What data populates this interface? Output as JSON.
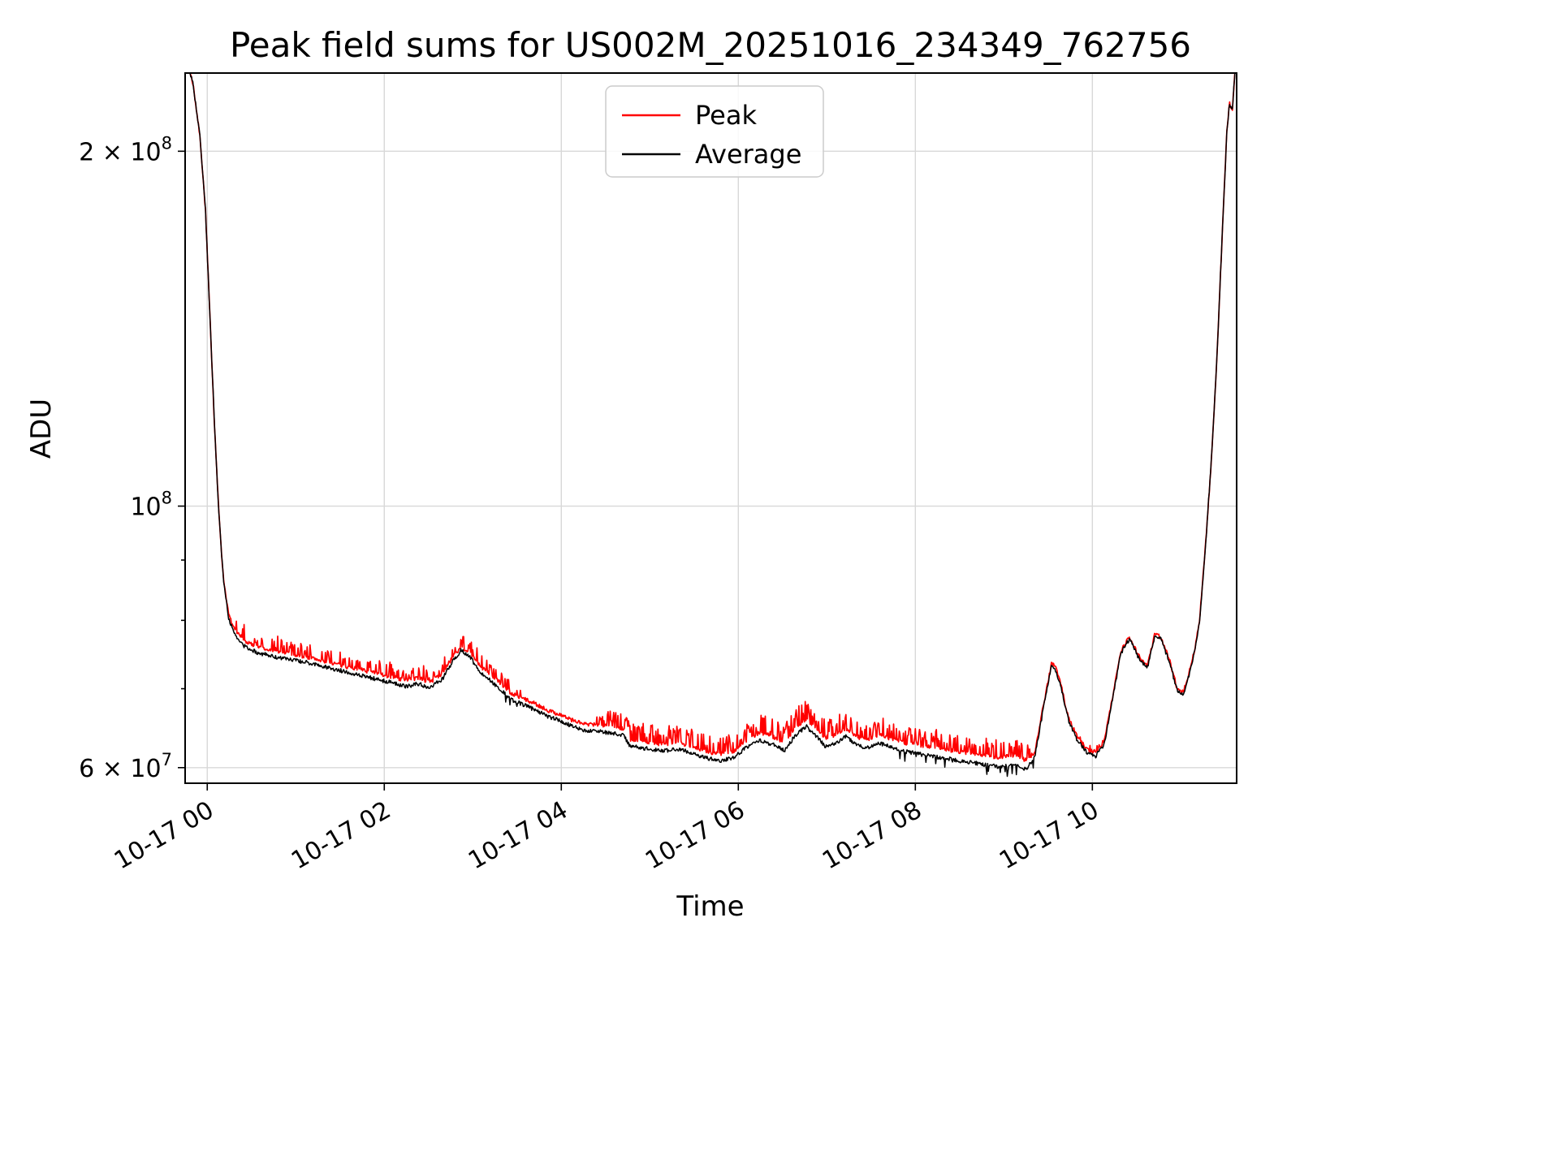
{
  "chart_data": {
    "type": "line",
    "title": "Peak field sums for US002M_20251016_234349_762756",
    "xlabel": "Time",
    "ylabel": "ADU",
    "yscale": "log",
    "grid": true,
    "legend_position": "upper center",
    "xlim_hours": [
      -0.25,
      11.63
    ],
    "ylim": [
      58200000.0,
      233000000.0
    ],
    "x_ticks": [
      {
        "hours": 0,
        "label": "10-17 00"
      },
      {
        "hours": 2,
        "label": "10-17 02"
      },
      {
        "hours": 4,
        "label": "10-17 04"
      },
      {
        "hours": 6,
        "label": "10-17 06"
      },
      {
        "hours": 8,
        "label": "10-17 08"
      },
      {
        "hours": 10,
        "label": "10-17 10"
      }
    ],
    "y_ticks": [
      {
        "value": 200000000.0,
        "label": "2 × 10^8"
      },
      {
        "value": 100000000.0,
        "label": "10^8"
      },
      {
        "value": 60000000.0,
        "label": "6 × 10^7"
      }
    ],
    "y_minor_ticks": [
      70000000.0,
      80000000.0,
      90000000.0
    ],
    "noise": {
      "seed": 7,
      "samples": 1500
    },
    "series": [
      {
        "name": "Peak",
        "color": "#ff0000",
        "width": 1.7,
        "noise": {
          "jitter": 0.004,
          "spikes": [
            {
              "from": 0.3,
              "to": 3.6,
              "amp": 0.028,
              "density": 0.3
            },
            {
              "from": 4.4,
              "to": 9.3,
              "amp": 0.035,
              "density": 0.35
            },
            {
              "from": 9.8,
              "to": 10.16,
              "amp": 0.012,
              "density": 0.2
            }
          ]
        },
        "control_points": [
          [
            -0.25,
            242000000.0
          ],
          [
            -0.16,
            228000000.0
          ],
          [
            -0.08,
            205000000.0
          ],
          [
            -0.02,
            178000000.0
          ],
          [
            0.03,
            145000000.0
          ],
          [
            0.08,
            118000000.0
          ],
          [
            0.13,
            99000000.0
          ],
          [
            0.18,
            87200000.0
          ],
          [
            0.24,
            81000000.0
          ],
          [
            0.3,
            78700000.0
          ],
          [
            0.4,
            77000000.0
          ],
          [
            0.55,
            76000000.0
          ],
          [
            0.75,
            75300000.0
          ],
          [
            0.95,
            74900000.0
          ],
          [
            1.15,
            74400000.0
          ],
          [
            1.35,
            73800000.0
          ],
          [
            1.55,
            73200000.0
          ],
          [
            1.75,
            72600000.0
          ],
          [
            1.95,
            72000000.0
          ],
          [
            2.1,
            71600000.0
          ],
          [
            2.25,
            71100000.0
          ],
          [
            2.38,
            71500000.0
          ],
          [
            2.52,
            70900000.0
          ],
          [
            2.66,
            72200000.0
          ],
          [
            2.78,
            74600000.0
          ],
          [
            2.87,
            76000000.0
          ],
          [
            2.97,
            75000000.0
          ],
          [
            3.08,
            73200000.0
          ],
          [
            3.2,
            71900000.0
          ],
          [
            3.31,
            70800000.0
          ],
          [
            3.42,
            69400000.0
          ],
          [
            3.56,
            68700000.0
          ],
          [
            3.7,
            68000000.0
          ],
          [
            3.85,
            67100000.0
          ],
          [
            4.0,
            66500000.0
          ],
          [
            4.13,
            65800000.0
          ],
          [
            4.27,
            65300000.0
          ],
          [
            4.42,
            65200000.0
          ],
          [
            4.57,
            65000000.0
          ],
          [
            4.71,
            64700000.0
          ],
          [
            4.77,
            63400000.0
          ],
          [
            4.95,
            63100000.0
          ],
          [
            5.15,
            62800000.0
          ],
          [
            5.35,
            63000000.0
          ],
          [
            5.5,
            62400000.0
          ],
          [
            5.65,
            61900000.0
          ],
          [
            5.8,
            61600000.0
          ],
          [
            5.95,
            62000000.0
          ],
          [
            6.1,
            63400000.0
          ],
          [
            6.25,
            64300000.0
          ],
          [
            6.4,
            63700000.0
          ],
          [
            6.52,
            63000000.0
          ],
          [
            6.65,
            65000000.0
          ],
          [
            6.77,
            66000000.0
          ],
          [
            6.88,
            64800000.0
          ],
          [
            6.98,
            63600000.0
          ],
          [
            7.1,
            63900000.0
          ],
          [
            7.21,
            64800000.0
          ],
          [
            7.33,
            63800000.0
          ],
          [
            7.45,
            63300000.0
          ],
          [
            7.58,
            64000000.0
          ],
          [
            7.72,
            63500000.0
          ],
          [
            7.86,
            63000000.0
          ],
          [
            8.0,
            62800000.0
          ],
          [
            8.22,
            62400000.0
          ],
          [
            8.45,
            62000000.0
          ],
          [
            8.7,
            61600000.0
          ],
          [
            8.95,
            61200000.0
          ],
          [
            9.1,
            61500000.0
          ],
          [
            9.25,
            60900000.0
          ],
          [
            9.35,
            61800000.0
          ],
          [
            9.44,
            67400000.0
          ],
          [
            9.54,
            73600000.0
          ],
          [
            9.58,
            73200000.0
          ],
          [
            9.64,
            70800000.0
          ],
          [
            9.73,
            66100000.0
          ],
          [
            9.83,
            63700000.0
          ],
          [
            9.93,
            62300000.0
          ],
          [
            10.03,
            61700000.0
          ],
          [
            10.13,
            63000000.0
          ],
          [
            10.22,
            68300000.0
          ],
          [
            10.32,
            75300000.0
          ],
          [
            10.42,
            77500000.0
          ],
          [
            10.52,
            74700000.0
          ],
          [
            10.62,
            73100000.0
          ],
          [
            10.71,
            78100000.0
          ],
          [
            10.78,
            77300000.0
          ],
          [
            10.88,
            73700000.0
          ],
          [
            10.96,
            69900000.0
          ],
          [
            11.03,
            69600000.0
          ],
          [
            11.09,
            72100000.0
          ],
          [
            11.15,
            75300000.0
          ],
          [
            11.21,
            79700000.0
          ],
          [
            11.28,
            93200000.0
          ],
          [
            11.34,
            108000000.0
          ],
          [
            11.41,
            135000000.0
          ],
          [
            11.47,
            172000000.0
          ],
          [
            11.52,
            208000000.0
          ],
          [
            11.55,
            220000000.0
          ],
          [
            11.58,
            216000000.0
          ],
          [
            11.63,
            245000000.0
          ]
        ]
      },
      {
        "name": "Average",
        "color": "#000000",
        "width": 1.5,
        "noise": {
          "jitter": 0.004,
          "spikes": [
            {
              "from": 3.3,
              "to": 3.5,
              "amp": -0.018,
              "density": 0.15
            },
            {
              "from": 7.8,
              "to": 9.45,
              "amp": -0.02,
              "density": 0.12
            },
            {
              "from": 10.0,
              "to": 10.12,
              "amp": -0.012,
              "density": 0.1
            }
          ]
        },
        "control_points": [
          [
            -0.25,
            242000000.0
          ],
          [
            -0.16,
            228000000.0
          ],
          [
            -0.08,
            205000000.0
          ],
          [
            -0.02,
            178000000.0
          ],
          [
            0.03,
            145000000.0
          ],
          [
            0.08,
            118000000.0
          ],
          [
            0.13,
            99000000.0
          ],
          [
            0.18,
            87000000.0
          ],
          [
            0.24,
            80500000.0
          ],
          [
            0.3,
            78000000.0
          ],
          [
            0.4,
            76200000.0
          ],
          [
            0.55,
            75200000.0
          ],
          [
            0.75,
            74500000.0
          ],
          [
            0.95,
            74100000.0
          ],
          [
            1.15,
            73600000.0
          ],
          [
            1.35,
            73000000.0
          ],
          [
            1.55,
            72400000.0
          ],
          [
            1.75,
            71800000.0
          ],
          [
            1.95,
            71200000.0
          ],
          [
            2.1,
            70800000.0
          ],
          [
            2.25,
            70300000.0
          ],
          [
            2.38,
            70700000.0
          ],
          [
            2.52,
            70100000.0
          ],
          [
            2.66,
            71400000.0
          ],
          [
            2.78,
            74000000.0
          ],
          [
            2.87,
            75500000.0
          ],
          [
            2.97,
            74400000.0
          ],
          [
            3.08,
            72400000.0
          ],
          [
            3.2,
            71100000.0
          ],
          [
            3.31,
            70000000.0
          ],
          [
            3.42,
            68600000.0
          ],
          [
            3.56,
            67900000.0
          ],
          [
            3.7,
            67200000.0
          ],
          [
            3.85,
            66300000.0
          ],
          [
            4.0,
            65700000.0
          ],
          [
            4.13,
            65000000.0
          ],
          [
            4.27,
            64500000.0
          ],
          [
            4.42,
            64400000.0
          ],
          [
            4.57,
            64200000.0
          ],
          [
            4.71,
            63900000.0
          ],
          [
            4.77,
            62600000.0
          ],
          [
            4.95,
            62300000.0
          ],
          [
            5.15,
            62000000.0
          ],
          [
            5.35,
            62200000.0
          ],
          [
            5.5,
            61600000.0
          ],
          [
            5.65,
            61100000.0
          ],
          [
            5.8,
            60800000.0
          ],
          [
            5.95,
            61200000.0
          ],
          [
            6.1,
            62500000.0
          ],
          [
            6.25,
            63300000.0
          ],
          [
            6.4,
            62700000.0
          ],
          [
            6.52,
            62000000.0
          ],
          [
            6.65,
            64000000.0
          ],
          [
            6.77,
            65000000.0
          ],
          [
            6.88,
            63800000.0
          ],
          [
            6.98,
            62600000.0
          ],
          [
            7.1,
            62900000.0
          ],
          [
            7.21,
            63800000.0
          ],
          [
            7.33,
            62800000.0
          ],
          [
            7.45,
            62300000.0
          ],
          [
            7.58,
            63000000.0
          ],
          [
            7.72,
            62500000.0
          ],
          [
            7.86,
            62000000.0
          ],
          [
            8.0,
            61700000.0
          ],
          [
            8.22,
            61300000.0
          ],
          [
            8.45,
            60900000.0
          ],
          [
            8.7,
            60500000.0
          ],
          [
            8.95,
            60100000.0
          ],
          [
            9.1,
            60400000.0
          ],
          [
            9.25,
            59800000.0
          ],
          [
            9.35,
            61200000.0
          ],
          [
            9.44,
            67000000.0
          ],
          [
            9.54,
            73200000.0
          ],
          [
            9.58,
            72800000.0
          ],
          [
            9.64,
            70500000.0
          ],
          [
            9.73,
            65800000.0
          ],
          [
            9.83,
            63300000.0
          ],
          [
            9.93,
            61900000.0
          ],
          [
            10.03,
            61300000.0
          ],
          [
            10.13,
            62600000.0
          ],
          [
            10.22,
            68000000.0
          ],
          [
            10.32,
            75000000.0
          ],
          [
            10.42,
            77200000.0
          ],
          [
            10.52,
            74400000.0
          ],
          [
            10.62,
            72800000.0
          ],
          [
            10.71,
            77800000.0
          ],
          [
            10.78,
            77000000.0
          ],
          [
            10.88,
            73400000.0
          ],
          [
            10.96,
            69600000.0
          ],
          [
            11.03,
            69300000.0
          ],
          [
            11.09,
            71800000.0
          ],
          [
            11.15,
            75000000.0
          ],
          [
            11.21,
            79500000.0
          ],
          [
            11.28,
            93000000.0
          ],
          [
            11.34,
            108000000.0
          ],
          [
            11.41,
            135000000.0
          ],
          [
            11.47,
            172000000.0
          ],
          [
            11.52,
            208000000.0
          ],
          [
            11.55,
            220000000.0
          ],
          [
            11.58,
            216000000.0
          ],
          [
            11.63,
            245000000.0
          ]
        ]
      }
    ]
  }
}
